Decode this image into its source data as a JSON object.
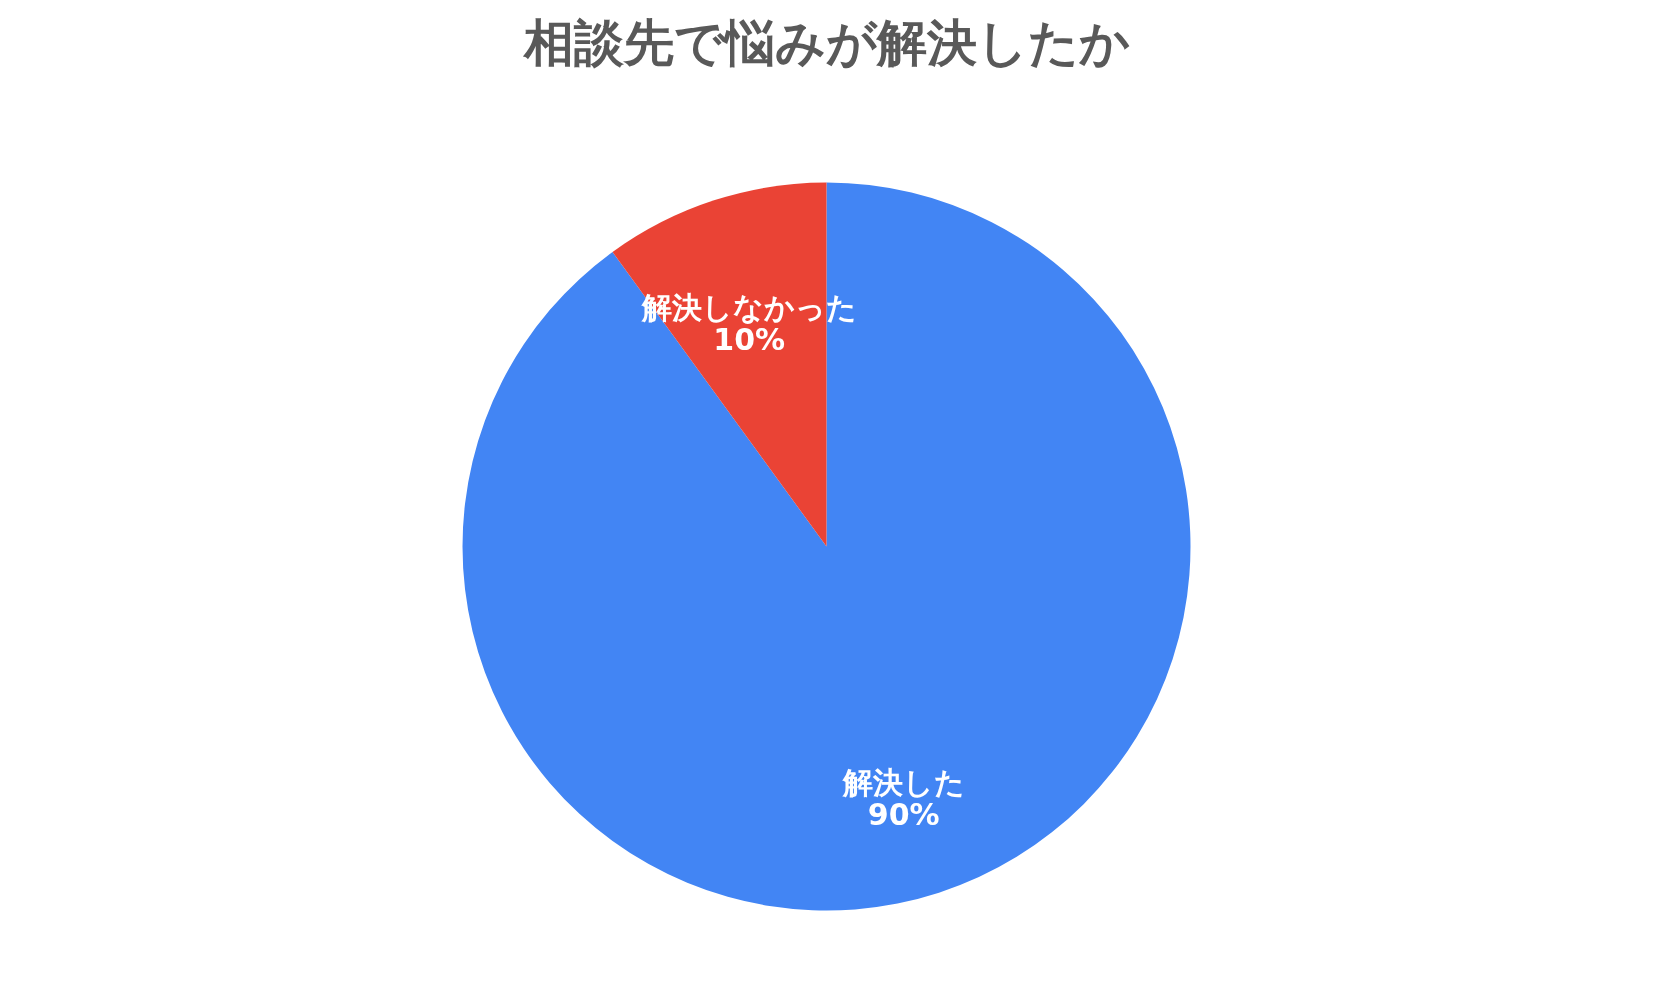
{
  "chart_data": {
    "type": "pie",
    "title": "相談先で悩みが解決したか",
    "categories": [
      "解決した",
      "解決しなかった"
    ],
    "values": [
      90,
      10
    ],
    "colors": [
      "#4285f4",
      "#ea4335"
    ],
    "value_labels": [
      "90%",
      "10%"
    ],
    "legend": false
  }
}
